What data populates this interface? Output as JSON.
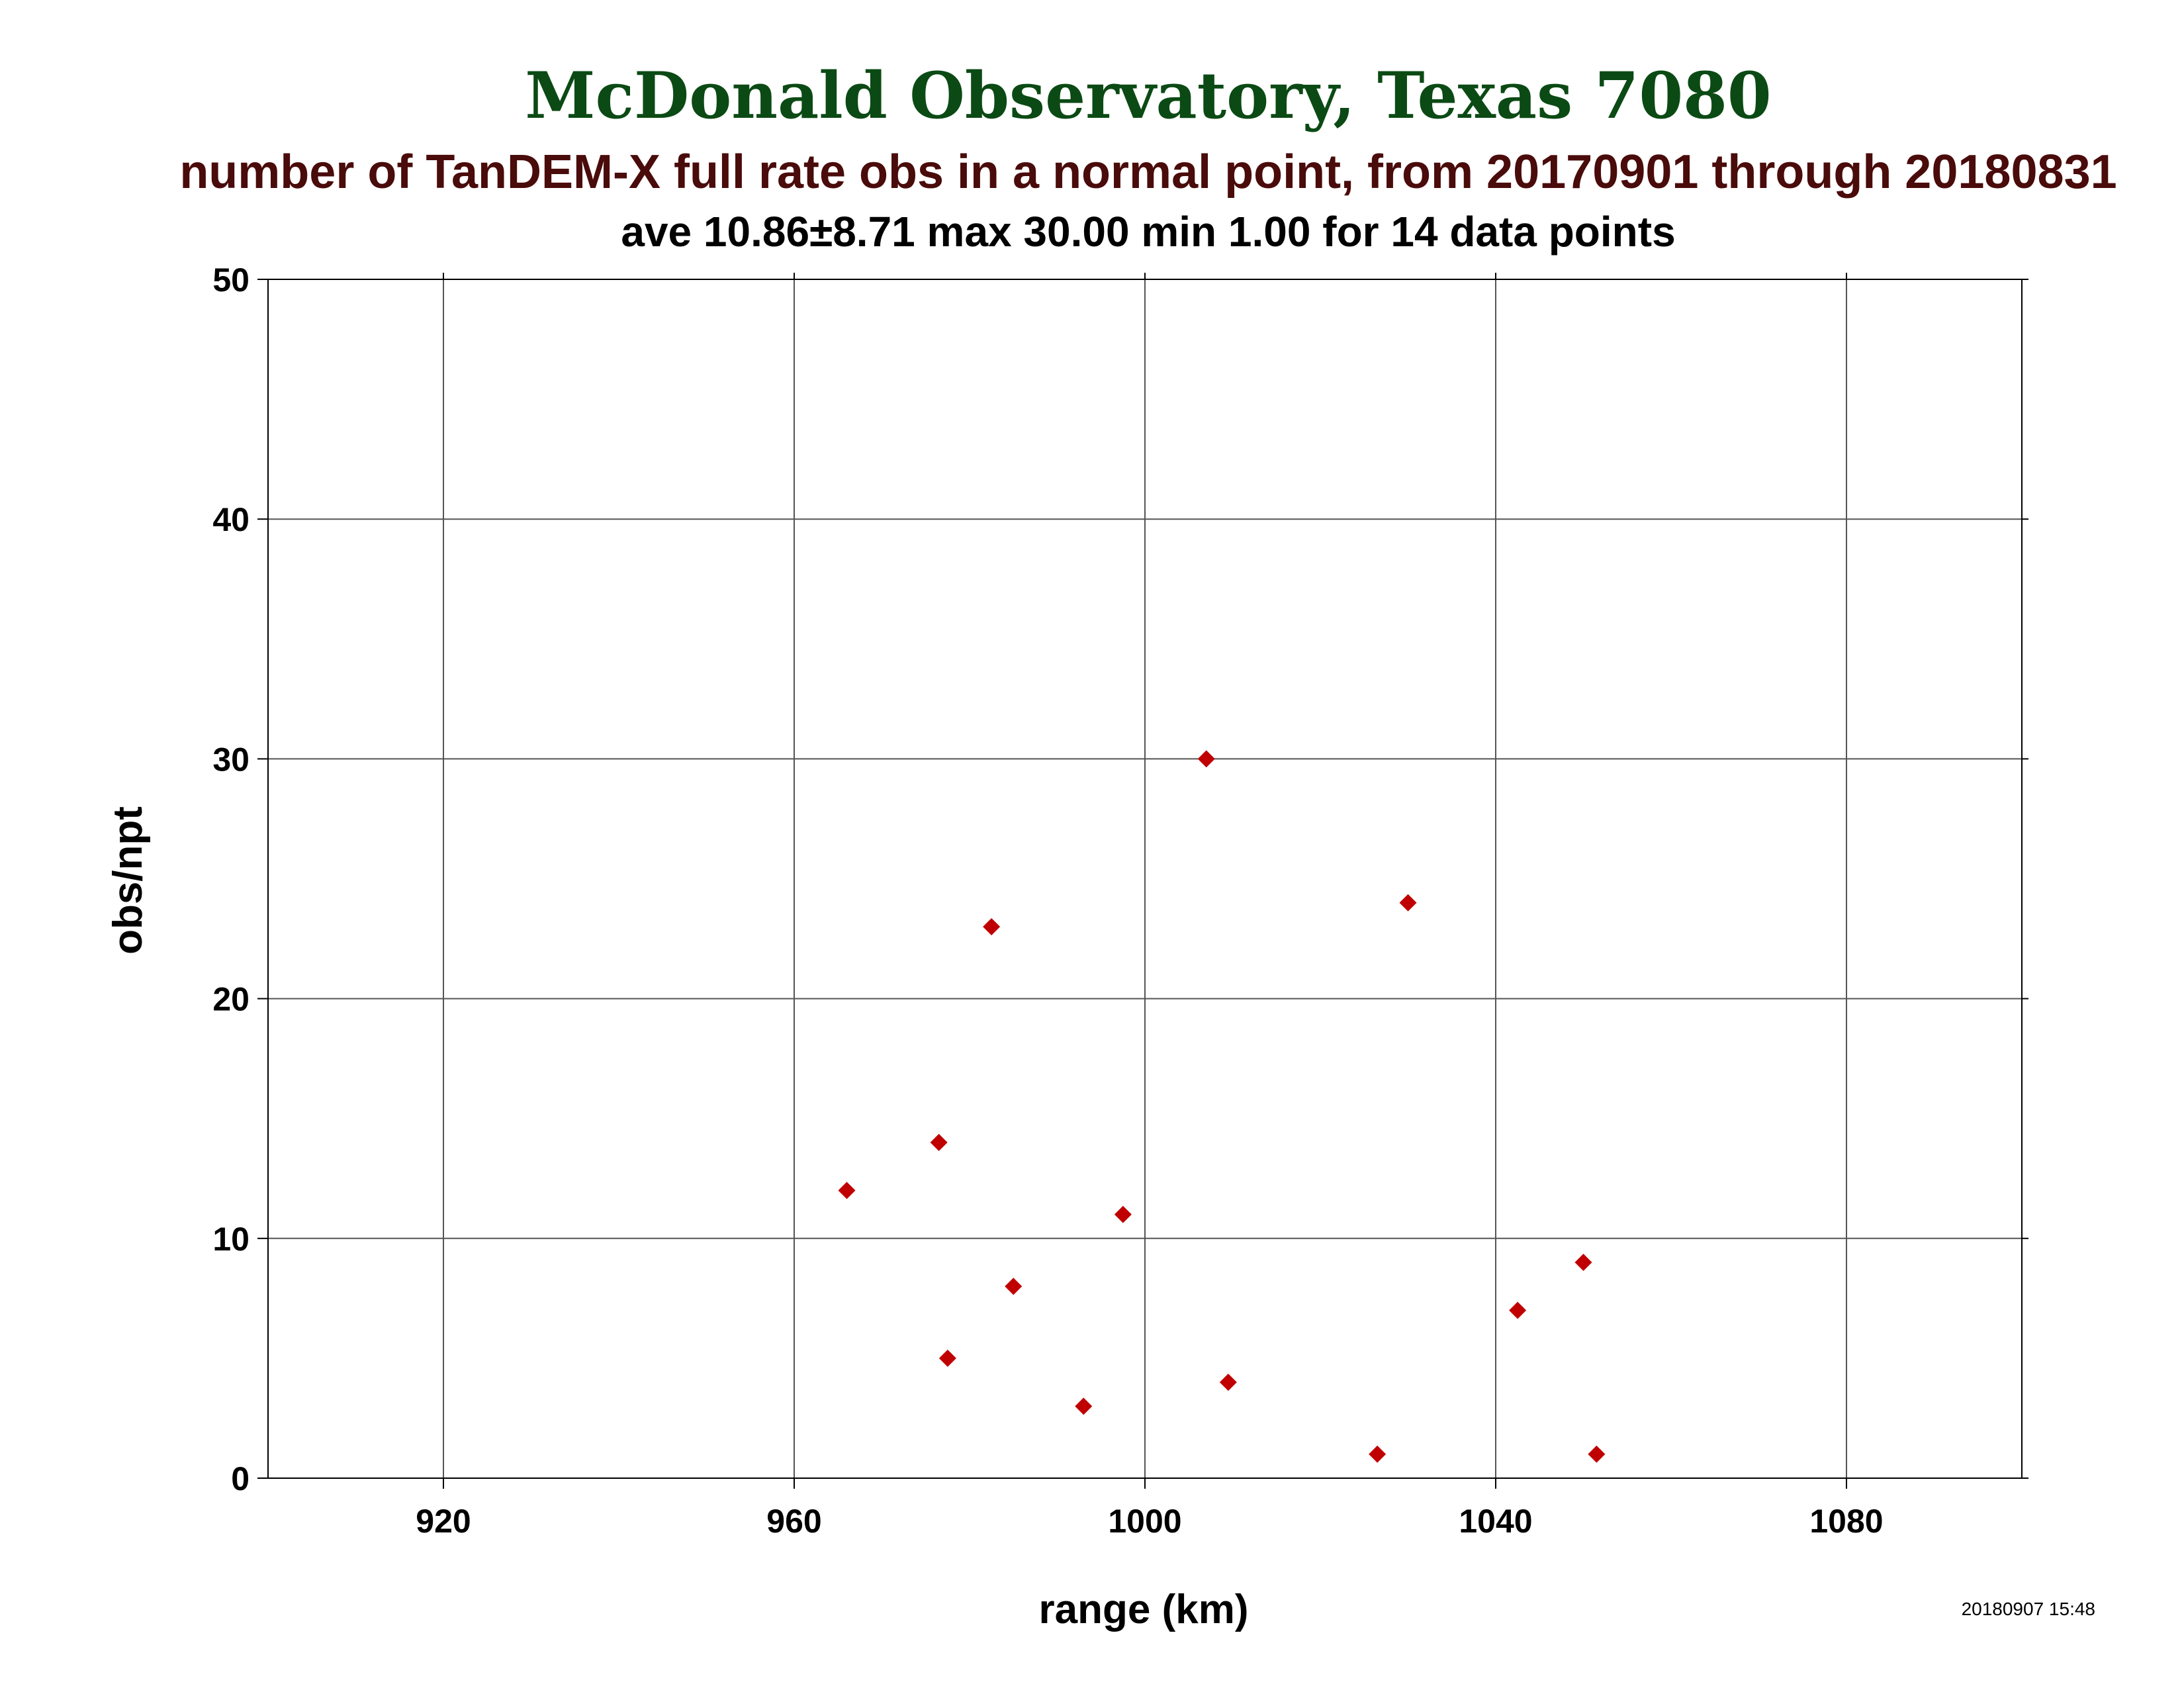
{
  "chart_data": {
    "type": "scatter",
    "title": "McDonald Observatory, Texas 7080",
    "subtitle": "number of TanDEM-X full rate obs in a normal point, from 20170901 through 20180831",
    "stats": "ave 10.86±8.71 max 30.00 min 1.00 for 14 data points",
    "xlabel": "range (km)",
    "ylabel": "obs/npt",
    "xlim": [
      900,
      1100
    ],
    "ylim": [
      0,
      50
    ],
    "xticks": [
      920,
      960,
      1000,
      1040,
      1080
    ],
    "yticks": [
      0,
      10,
      20,
      30,
      40,
      50
    ],
    "grid": true,
    "marker_color": "#c00000",
    "points": [
      {
        "x": 966,
        "y": 12
      },
      {
        "x": 976.5,
        "y": 14
      },
      {
        "x": 977.5,
        "y": 5
      },
      {
        "x": 982.5,
        "y": 23
      },
      {
        "x": 985,
        "y": 8
      },
      {
        "x": 993,
        "y": 3
      },
      {
        "x": 997.5,
        "y": 11
      },
      {
        "x": 1007,
        "y": 30
      },
      {
        "x": 1009.5,
        "y": 4
      },
      {
        "x": 1026.5,
        "y": 1
      },
      {
        "x": 1030,
        "y": 24
      },
      {
        "x": 1042.5,
        "y": 7
      },
      {
        "x": 1050,
        "y": 9
      },
      {
        "x": 1051.5,
        "y": 1
      }
    ]
  },
  "timestamp": "20180907 15:48"
}
